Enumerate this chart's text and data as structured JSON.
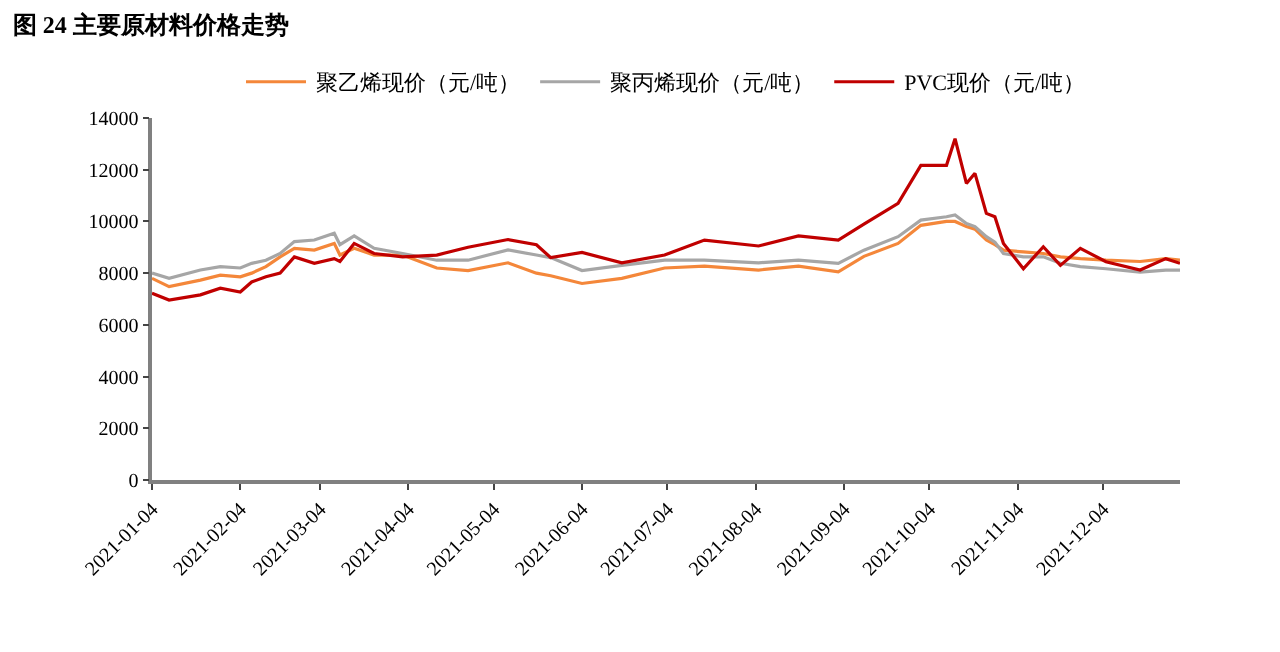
{
  "chart_data": {
    "type": "line",
    "title": "图 24 主要原材料价格走势",
    "x": [
      "2021-01-04",
      "2021-01-10",
      "2021-01-21",
      "2021-01-28",
      "2021-02-04",
      "2021-02-08",
      "2021-02-13",
      "2021-02-18",
      "2021-02-23",
      "2021-03-02",
      "2021-03-09",
      "2021-03-11",
      "2021-03-16",
      "2021-03-23",
      "2021-04-02",
      "2021-04-14",
      "2021-04-25",
      "2021-05-09",
      "2021-05-19",
      "2021-05-24",
      "2021-06-04",
      "2021-06-18",
      "2021-07-03",
      "2021-07-17",
      "2021-08-05",
      "2021-08-19",
      "2021-09-02",
      "2021-09-11",
      "2021-09-23",
      "2021-10-01",
      "2021-10-10",
      "2021-10-13",
      "2021-10-17",
      "2021-10-20",
      "2021-10-24",
      "2021-10-27",
      "2021-10-30",
      "2021-11-06",
      "2021-11-13",
      "2021-11-19",
      "2021-11-26",
      "2021-12-05",
      "2021-12-17",
      "2021-12-26",
      "2021-12-31"
    ],
    "series": [
      {
        "name": "聚乙烯现价（元/吨）",
        "color": "#f4873a",
        "values": [
          7800,
          7480,
          7730,
          7920,
          7860,
          8000,
          8250,
          8630,
          8960,
          8890,
          9150,
          8700,
          8960,
          8700,
          8700,
          8200,
          8100,
          8400,
          8000,
          7900,
          7600,
          7800,
          8200,
          8270,
          8120,
          8270,
          8050,
          8650,
          9150,
          9850,
          10000,
          10000,
          9800,
          9700,
          9280,
          9100,
          8890,
          8820,
          8760,
          8630,
          8560,
          8500,
          8450,
          8560,
          8500
        ]
      },
      {
        "name": "聚丙烯现价（元/吨）",
        "color": "#a6a6a6",
        "values": [
          8000,
          7800,
          8120,
          8250,
          8200,
          8380,
          8500,
          8760,
          9220,
          9280,
          9540,
          9100,
          9440,
          8960,
          8760,
          8500,
          8500,
          8900,
          8700,
          8600,
          8100,
          8300,
          8500,
          8500,
          8400,
          8500,
          8380,
          8890,
          9410,
          10050,
          10180,
          10250,
          9920,
          9800,
          9410,
          9200,
          8760,
          8630,
          8630,
          8380,
          8250,
          8170,
          8040,
          8120,
          8120
        ]
      },
      {
        "name": "PVC现价（元/吨）",
        "color": "#c00000",
        "values": [
          7220,
          6960,
          7160,
          7420,
          7270,
          7660,
          7860,
          8000,
          8630,
          8380,
          8560,
          8450,
          9150,
          8760,
          8630,
          8700,
          9000,
          9300,
          9100,
          8600,
          8800,
          8400,
          8700,
          9280,
          9050,
          9440,
          9280,
          9900,
          10700,
          12170,
          12170,
          13200,
          11470,
          11860,
          10310,
          10180,
          9150,
          8170,
          9020,
          8300,
          8960,
          8440,
          8120,
          8560,
          8380
        ]
      }
    ],
    "xlim": [
      "2021-01-04",
      "2021-12-31"
    ],
    "xticks": [
      "2021-01-04",
      "2021-02-04",
      "2021-03-04",
      "2021-04-04",
      "2021-05-04",
      "2021-06-04",
      "2021-07-04",
      "2021-08-04",
      "2021-09-04",
      "2021-10-04",
      "2021-11-04",
      "2021-12-04"
    ],
    "ylim": [
      0,
      14000
    ],
    "yticks": [
      0,
      2000,
      4000,
      6000,
      8000,
      10000,
      12000,
      14000
    ],
    "legend": "top",
    "marker": "none",
    "line_style": "solid"
  }
}
